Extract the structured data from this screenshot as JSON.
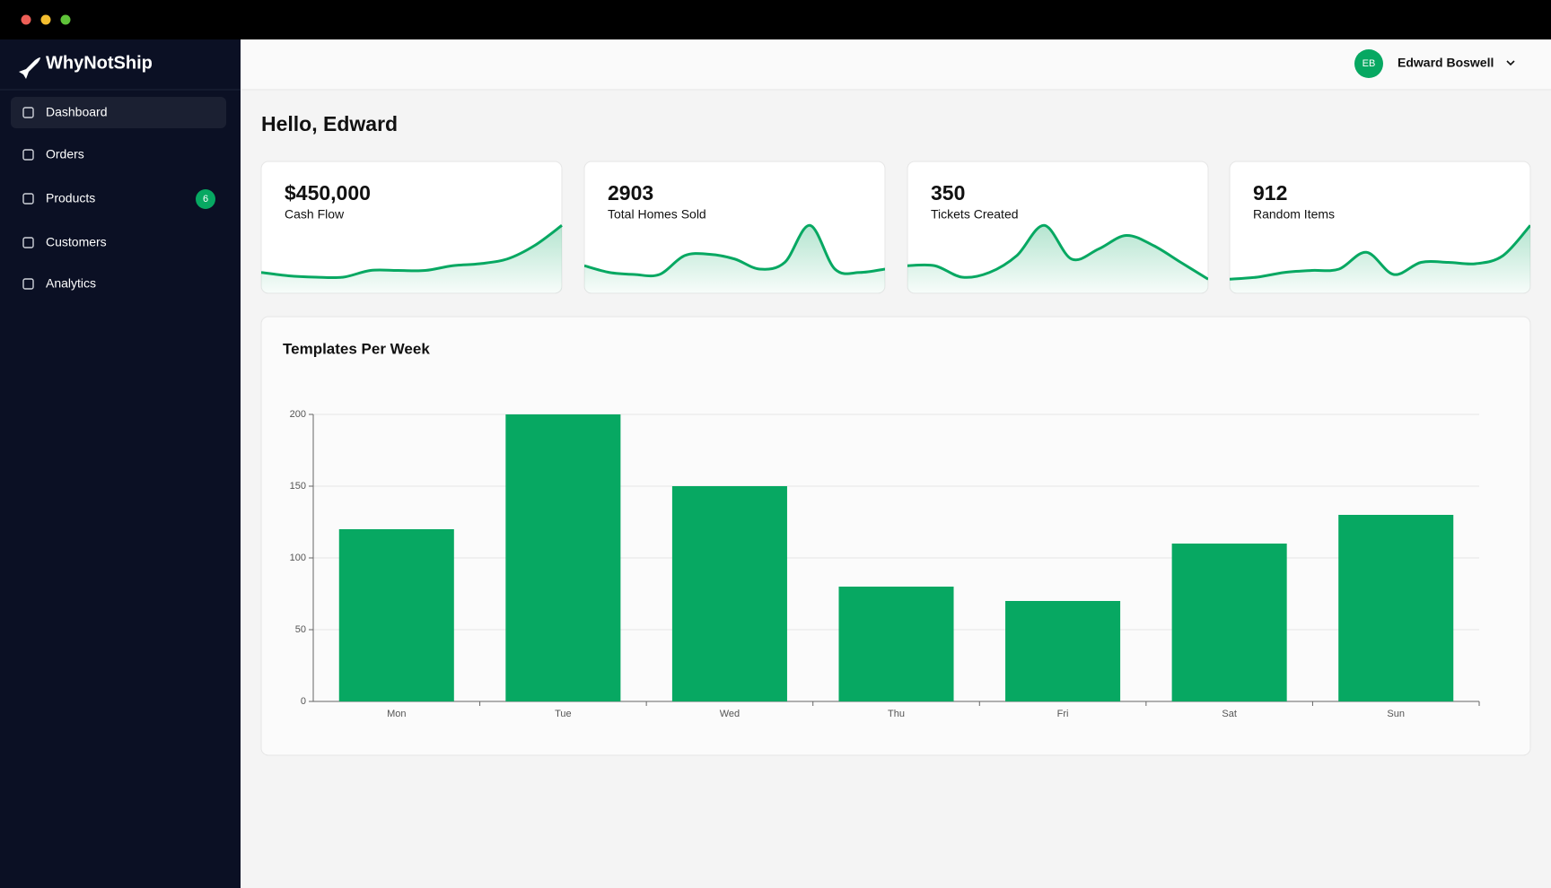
{
  "sidebar": {
    "brand": "WhyNotShip",
    "nav": [
      {
        "label": "Dashboard"
      },
      {
        "label": "Orders"
      },
      {
        "label": "Products",
        "badge": 6
      },
      {
        "label": "Customers"
      },
      {
        "label": "Analytics"
      }
    ]
  },
  "header": {
    "avatar": "EB",
    "user": "Edward Boswell"
  },
  "greeting": "Hello, Edward",
  "cards": [
    {
      "value": "$450,000",
      "label": "Cash Flow",
      "sparkline": [
        15,
        10,
        8,
        8,
        18,
        18,
        18,
        25,
        28,
        35,
        55,
        85
      ]
    },
    {
      "value": "2903",
      "label": "Total Homes Sold",
      "sparkline": [
        25,
        15,
        12,
        12,
        40,
        42,
        35,
        20,
        30,
        85,
        20,
        15,
        20
      ]
    },
    {
      "value": "350",
      "label": "Tickets Created",
      "sparkline": [
        25,
        25,
        8,
        15,
        40,
        85,
        35,
        50,
        70,
        55,
        30,
        5
      ]
    },
    {
      "value": "912",
      "label": "Random Items",
      "sparkline": [
        5,
        8,
        15,
        18,
        20,
        45,
        12,
        30,
        30,
        28,
        40,
        85
      ]
    }
  ],
  "chart_data": {
    "type": "bar",
    "title": "Templates Per Week",
    "categories": [
      "Mon",
      "Tue",
      "Wed",
      "Thu",
      "Fri",
      "Sat",
      "Sun"
    ],
    "values": [
      120,
      200,
      150,
      80,
      70,
      110,
      130
    ],
    "color": "#07a862",
    "ylim": [
      0,
      200
    ],
    "yticks": [
      0,
      50,
      100,
      150,
      200
    ],
    "grid": true
  }
}
